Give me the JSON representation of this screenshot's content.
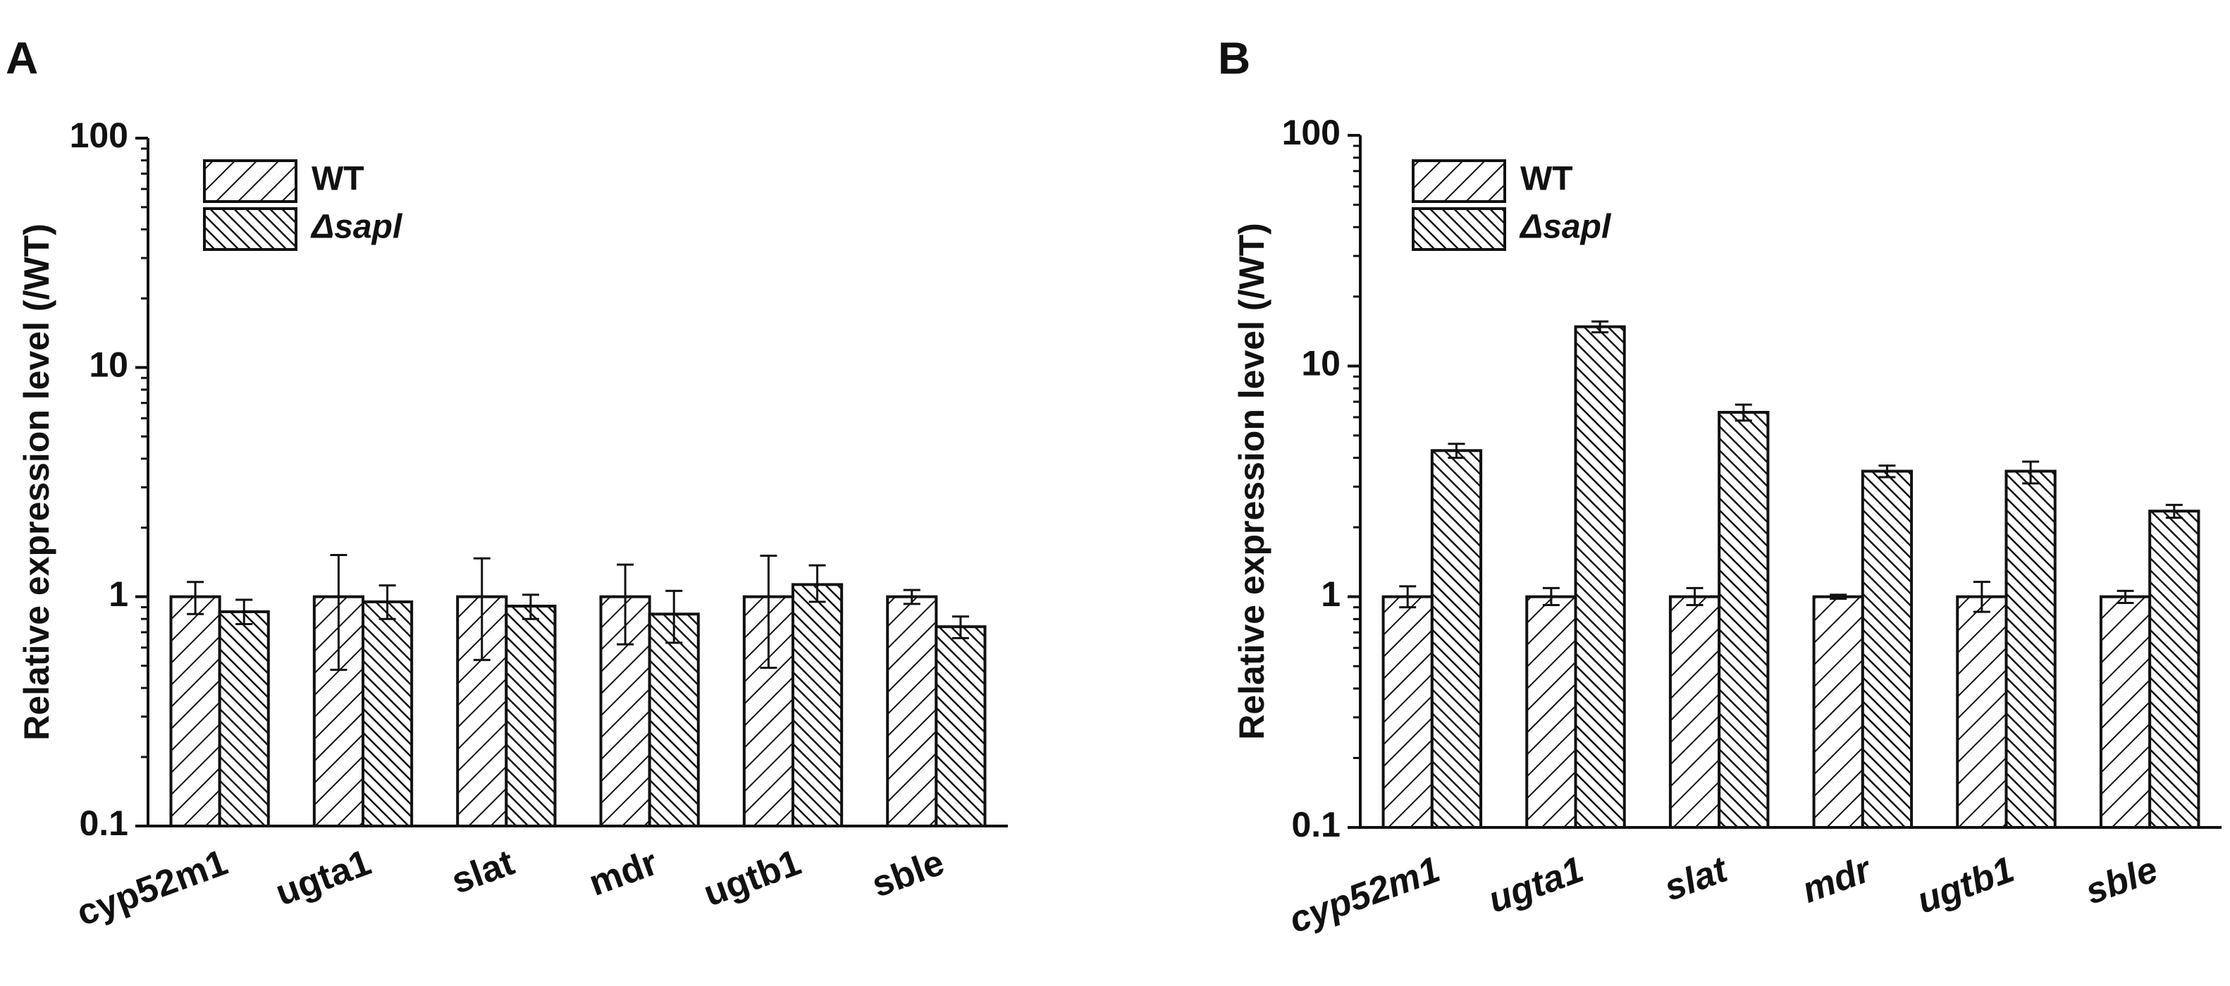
{
  "chart_data": [
    {
      "panel": "A",
      "type": "bar",
      "yscale": "log",
      "ylim": [
        0.1,
        100
      ],
      "yticks": [
        "0.1",
        "1",
        "10",
        "100"
      ],
      "ylabel": "Relative expression level (/WT)",
      "categories": [
        "cyp52m1",
        "ugta1",
        "slat",
        "mdr",
        "ugtb1",
        "sble"
      ],
      "italic_categories": false,
      "series": [
        {
          "name": "WT",
          "values": [
            1.0,
            1.0,
            1.0,
            1.0,
            1.0,
            1.0
          ],
          "err_low": [
            0.84,
            0.48,
            0.53,
            0.62,
            0.49,
            0.93
          ],
          "err_high": [
            1.16,
            1.52,
            1.47,
            1.38,
            1.51,
            1.07
          ]
        },
        {
          "name": "Δsapl",
          "values": [
            0.86,
            0.95,
            0.91,
            0.84,
            1.13,
            0.74
          ],
          "err_low": [
            0.76,
            0.8,
            0.8,
            0.63,
            0.95,
            0.66
          ],
          "err_high": [
            0.97,
            1.12,
            1.02,
            1.06,
            1.37,
            0.82
          ]
        }
      ]
    },
    {
      "panel": "B",
      "type": "bar",
      "yscale": "log",
      "ylim": [
        0.1,
        100
      ],
      "yticks": [
        "0.1",
        "1",
        "10",
        "100"
      ],
      "ylabel": "Relative expression level (/WT)",
      "categories": [
        "cyp52m1",
        "ugta1",
        "slat",
        "mdr",
        "ugtb1",
        "sble"
      ],
      "italic_categories": true,
      "series": [
        {
          "name": "WT",
          "values": [
            1.0,
            1.0,
            1.0,
            1.0,
            1.0,
            1.0
          ],
          "err_low": [
            0.9,
            0.92,
            0.92,
            0.98,
            0.86,
            0.94
          ],
          "err_high": [
            1.11,
            1.09,
            1.09,
            1.02,
            1.16,
            1.06
          ]
        },
        {
          "name": "Δsapl",
          "values": [
            4.3,
            14.8,
            6.3,
            3.5,
            3.5,
            2.35
          ],
          "err_low": [
            4.0,
            14.0,
            5.8,
            3.3,
            3.1,
            2.2
          ],
          "err_high": [
            4.6,
            15.6,
            6.8,
            3.7,
            3.85,
            2.5
          ]
        }
      ]
    }
  ],
  "colors": {
    "stroke": "#111111",
    "background": "#ffffff"
  }
}
